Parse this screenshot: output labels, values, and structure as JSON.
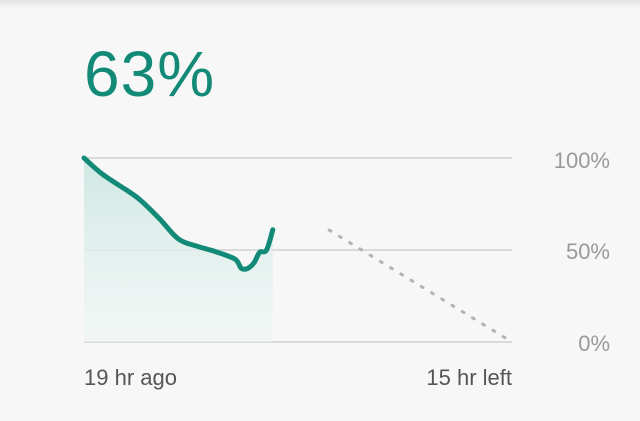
{
  "battery": {
    "percent_label": "63%",
    "level": 0.63
  },
  "chart_data": {
    "type": "line",
    "y_ticks": [
      "100%",
      "50%",
      "0%"
    ],
    "ylim": [
      0,
      100
    ],
    "x_start_label": "19 hr ago",
    "x_end_label": "15 hr left",
    "history_hours_ago": [
      19,
      17.5,
      15.5,
      14.5,
      13,
      11.5,
      10,
      8.5,
      7,
      6.5,
      6,
      5.5,
      5.2,
      5,
      4.5,
      4
    ],
    "history_values": [
      100,
      91,
      82,
      77,
      67,
      56,
      52,
      49,
      45,
      40,
      40,
      43,
      47,
      49,
      50,
      61
    ],
    "projection": [
      {
        "hours": 0,
        "value": 63
      },
      {
        "hours": 15,
        "value": 0
      }
    ],
    "grid": true,
    "colors": {
      "line": "#138a78",
      "fill": "#d5ece8",
      "grid": "#c8c8c8",
      "projection": "#b3b3b3"
    }
  }
}
